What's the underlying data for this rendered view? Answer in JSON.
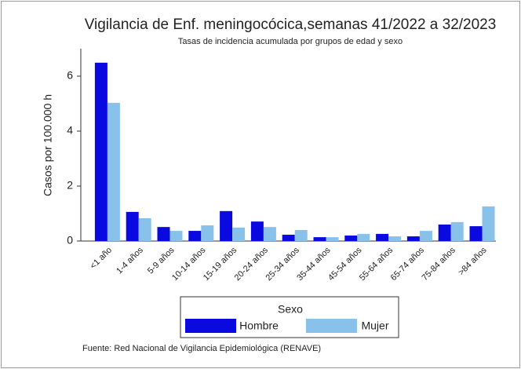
{
  "chart_data": {
    "type": "bar",
    "title": "Vigilancia de Enf. meningocócica,semanas 41/2022 a 32/2023",
    "subtitle": "Tasas de incidencia acumulada por grupos de edad y sexo",
    "y_label": "Casos por 100.000 h",
    "categories": [
      "<1 año",
      "1-4 años",
      "5-9 años",
      "10-14 años",
      "15-19 años",
      "20-24 años",
      "25-34 años",
      "35-44 años",
      "45-54 años",
      "55-64 años",
      "65-74 años",
      "75-84 años",
      ">84 años"
    ],
    "series": [
      {
        "name": "Hombre",
        "color": "#0a0ae0",
        "values": [
          6.49,
          1.06,
          0.51,
          0.37,
          1.09,
          0.71,
          0.23,
          0.14,
          0.2,
          0.26,
          0.17,
          0.6,
          0.54
        ]
      },
      {
        "name": "Mujer",
        "color": "#88c2ea",
        "values": [
          5.03,
          0.83,
          0.37,
          0.57,
          0.49,
          0.51,
          0.4,
          0.14,
          0.26,
          0.17,
          0.37,
          0.69,
          1.26
        ]
      }
    ],
    "ylim": [
      0,
      7
    ],
    "yticks": [
      0,
      2,
      4,
      6
    ],
    "legend": "bottom",
    "legend_title": "Sexo",
    "source": "Fuente: Red Nacional de Vigilancia Epidemiológica (RENAVE)"
  }
}
